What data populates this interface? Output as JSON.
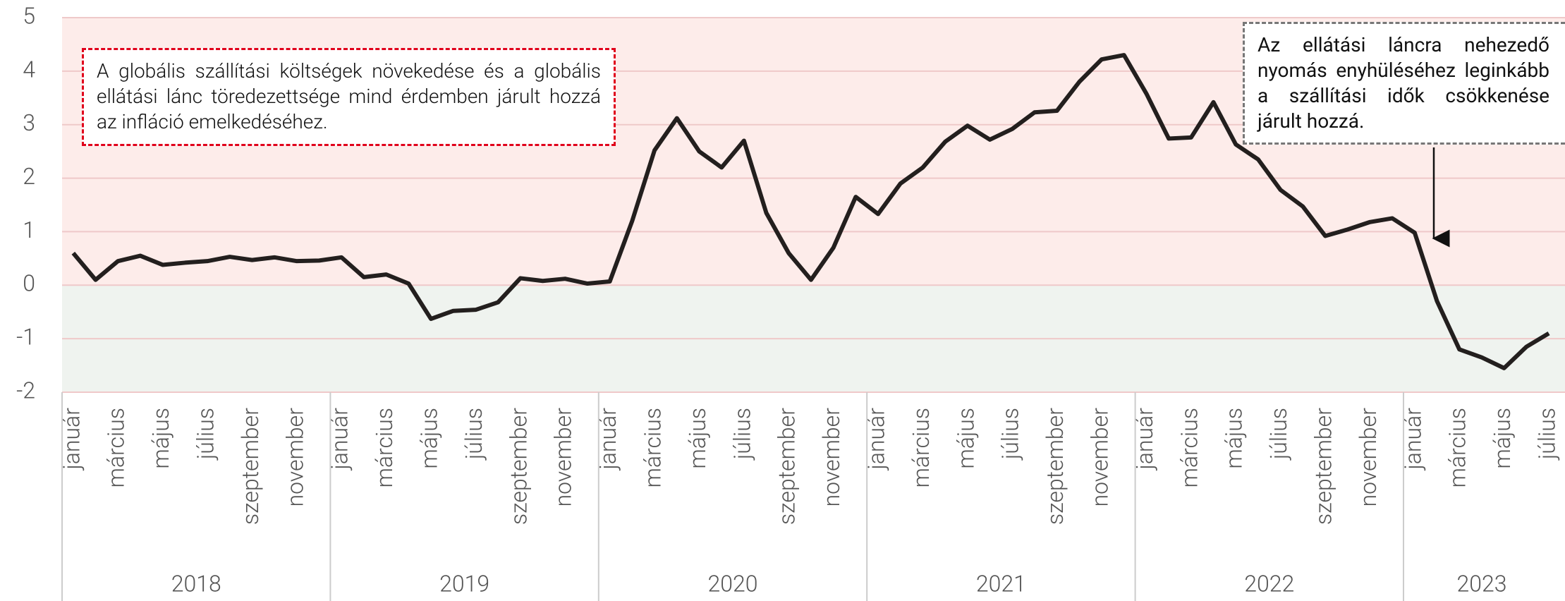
{
  "chart_data": {
    "type": "line",
    "categories": [
      "január",
      null,
      "március",
      null,
      "május",
      null,
      "július",
      null,
      "szeptember",
      null,
      "november",
      null,
      "január",
      null,
      "március",
      null,
      "május",
      null,
      "július",
      null,
      "szeptember",
      null,
      "november",
      null,
      "január",
      null,
      "március",
      null,
      "május",
      null,
      "július",
      null,
      "szeptember",
      null,
      "november",
      null,
      "január",
      null,
      "március",
      null,
      "május",
      null,
      "július",
      null,
      "szeptember",
      null,
      "november",
      null,
      "január",
      null,
      "március",
      null,
      "május",
      null,
      "július",
      null,
      "szeptember",
      null,
      "november",
      null,
      "január",
      null,
      "március",
      null,
      "május",
      null,
      "július"
    ],
    "years": [
      "2018",
      "2019",
      "2020",
      "2021",
      "2022",
      "2023"
    ],
    "values": [
      0.6,
      0.1,
      0.45,
      0.55,
      0.38,
      0.42,
      0.45,
      0.53,
      0.47,
      0.52,
      0.45,
      0.46,
      0.52,
      0.15,
      0.2,
      0.03,
      -0.63,
      -0.48,
      -0.46,
      -0.32,
      0.13,
      0.08,
      0.12,
      0.03,
      0.07,
      1.2,
      2.52,
      3.12,
      2.5,
      2.2,
      2.7,
      1.35,
      0.6,
      0.1,
      0.7,
      1.65,
      1.33,
      1.9,
      2.2,
      2.68,
      2.98,
      2.72,
      2.92,
      3.23,
      3.26,
      3.8,
      4.22,
      4.3,
      3.58,
      2.74,
      2.76,
      3.42,
      2.63,
      2.35,
      1.78,
      1.47,
      0.92,
      1.04,
      1.18,
      1.25,
      0.98,
      -0.3,
      -1.2,
      -1.35,
      -1.55,
      -1.15,
      -0.9
    ],
    "color": "#231f1e",
    "band_colors": [
      "#fdecea",
      "#eff3ef"
    ],
    "ylim": [
      -2,
      5
    ],
    "yticks": [
      -2,
      -1,
      0,
      1,
      2,
      3,
      4,
      5
    ],
    "grid": true,
    "annotations": [
      "A globális szállítási költségek növekedése és a globális ellátási lánc töredezettsége mind érdemben járult hozzá az infláció emelkedéséhez.",
      "Az ellátási láncra nehezedő nyomás enyhüléséhez leginkább a szállítási idők csökkenése járult hozzá."
    ]
  }
}
